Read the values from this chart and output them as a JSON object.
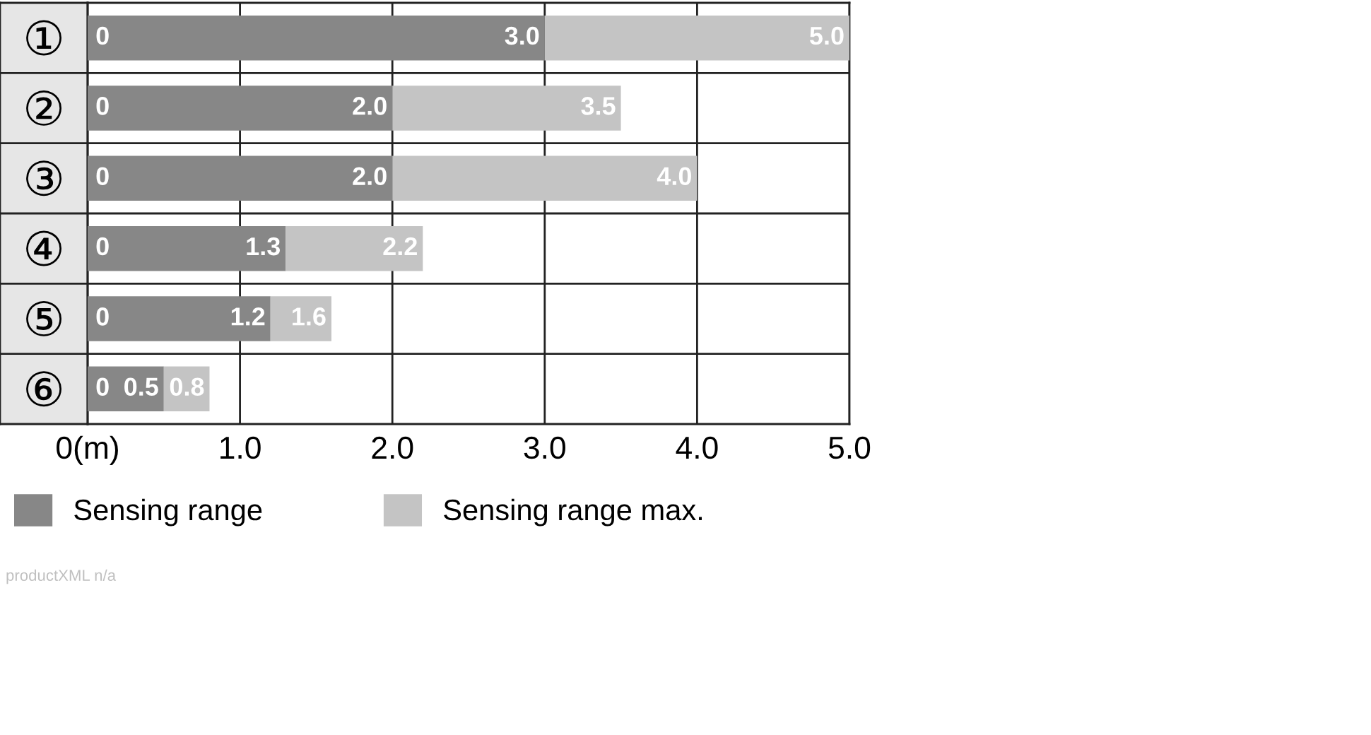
{
  "chart_data": {
    "type": "bar",
    "orientation": "horizontal",
    "stacked": true,
    "categories": [
      "①",
      "②",
      "③",
      "④",
      "⑤",
      "⑥"
    ],
    "series": [
      {
        "name": "Sensing range",
        "color": "#878787",
        "values": [
          3.0,
          2.0,
          2.0,
          1.3,
          1.2,
          0.5
        ],
        "value_labels": [
          "3.0",
          "2.0",
          "2.0",
          "1.3",
          "1.2",
          "0.5"
        ]
      },
      {
        "name": "Sensing range max.",
        "color": "#c4c4c4",
        "values": [
          2.0,
          1.5,
          2.0,
          0.9,
          0.4,
          0.3
        ]
      }
    ],
    "totals": [
      "5.0",
      "3.5",
      "4.0",
      "2.2",
      "1.6",
      "0.8"
    ],
    "xlim": [
      0,
      5
    ],
    "xticks": [
      {
        "value": 0,
        "label": "0(m)"
      },
      {
        "value": 1,
        "label": "1.0"
      },
      {
        "value": 2,
        "label": "2.0"
      },
      {
        "value": 3,
        "label": "3.0"
      },
      {
        "value": 4,
        "label": "4.0"
      },
      {
        "value": 5,
        "label": "5.0"
      }
    ],
    "grid": true,
    "legend": "bottom",
    "annotations": [
      "0",
      "0",
      "0",
      "0",
      "0",
      "0",
      "productXML n/a"
    ]
  }
}
